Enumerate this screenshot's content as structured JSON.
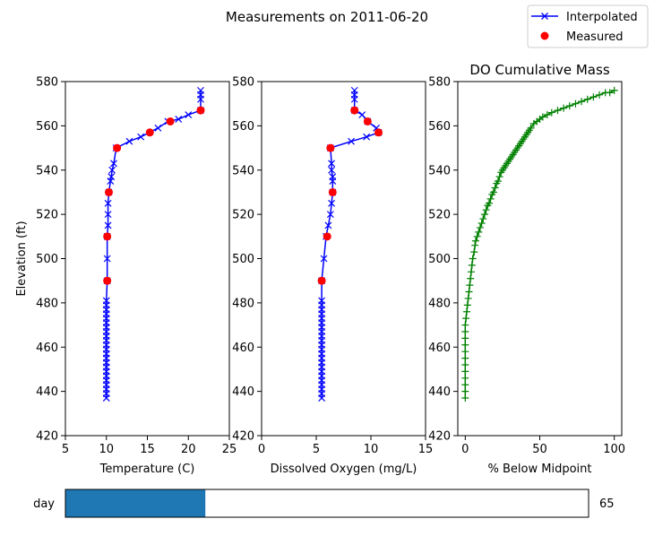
{
  "figure": {
    "title": "Measurements on 2011-06-20",
    "legend": {
      "placement": "top-right",
      "interpolated_label": "Interpolated",
      "measured_label": "Measured"
    },
    "colors": {
      "interpolated": "#0000ff",
      "measured": "#ff0000",
      "cumulative": "#008000",
      "slider_fill": "#1f77b4"
    }
  },
  "slider": {
    "label": "day",
    "value": 65,
    "value_text": "65",
    "fraction": 0.267
  },
  "chart_data": [
    {
      "type": "line",
      "xlabel": "Temperature (C)",
      "ylabel": "Elevation (ft)",
      "xlim": [
        5,
        25
      ],
      "ylim": [
        420,
        580
      ],
      "xticks": [
        "5",
        "10",
        "15",
        "20",
        "25"
      ],
      "yticks": [
        "420",
        "440",
        "460",
        "480",
        "500",
        "520",
        "540",
        "560",
        "580"
      ],
      "series": [
        {
          "name": "Interpolated",
          "marker": "x",
          "x": [
            10.0,
            10.0,
            10.0,
            10.0,
            10.0,
            10.0,
            10.0,
            10.0,
            10.0,
            10.0,
            10.0,
            10.0,
            10.0,
            10.0,
            10.0,
            10.0,
            10.0,
            10.0,
            10.0,
            10.0,
            10.0,
            10.0,
            10.0,
            10.1,
            10.1,
            10.1,
            10.2,
            10.2,
            10.2,
            10.3,
            10.5,
            10.6,
            10.7,
            10.9,
            11.2,
            12.8,
            14.2,
            16.3,
            17.5,
            18.8,
            20.0,
            21.5,
            21.5,
            21.5,
            21.5
          ],
          "y": [
            437,
            439,
            441,
            443,
            445,
            447,
            449,
            451,
            453,
            455,
            457,
            459,
            461,
            463,
            465,
            467,
            469,
            471,
            473,
            475,
            477,
            479,
            481,
            490,
            500,
            510,
            515,
            520,
            525,
            530,
            535,
            537,
            540,
            543,
            550,
            553,
            555,
            559,
            562,
            563,
            565,
            567,
            572,
            574,
            576
          ]
        },
        {
          "name": "Measured",
          "marker": "o",
          "x": [
            10.1,
            10.1,
            10.3,
            11.3,
            15.3,
            17.8,
            21.5
          ],
          "y": [
            490,
            510,
            530,
            550,
            557,
            562,
            567
          ]
        }
      ]
    },
    {
      "type": "line",
      "xlabel": "Dissolved Oxygen (mg/L)",
      "xlim": [
        0,
        15
      ],
      "ylim": [
        420,
        580
      ],
      "xticks": [
        "0",
        "5",
        "10",
        "15"
      ],
      "yticks": [
        "420",
        "440",
        "460",
        "480",
        "500",
        "520",
        "540",
        "560",
        "580"
      ],
      "series": [
        {
          "name": "Interpolated",
          "marker": "x",
          "x": [
            5.5,
            5.5,
            5.5,
            5.5,
            5.5,
            5.5,
            5.5,
            5.5,
            5.5,
            5.5,
            5.5,
            5.5,
            5.5,
            5.5,
            5.5,
            5.5,
            5.5,
            5.5,
            5.5,
            5.5,
            5.5,
            5.5,
            5.5,
            5.5,
            5.7,
            5.9,
            6.1,
            6.3,
            6.4,
            6.5,
            6.5,
            6.5,
            6.4,
            6.4,
            6.3,
            8.2,
            9.6,
            10.7,
            10.5,
            9.7,
            9.2,
            8.5,
            8.5,
            8.5,
            8.5
          ],
          "y": [
            437,
            439,
            441,
            443,
            445,
            447,
            449,
            451,
            453,
            455,
            457,
            459,
            461,
            463,
            465,
            467,
            469,
            471,
            473,
            475,
            477,
            479,
            481,
            490,
            500,
            510,
            515,
            520,
            525,
            530,
            535,
            537,
            540,
            543,
            550,
            553,
            555,
            557,
            559,
            562,
            565,
            567,
            572,
            574,
            576
          ]
        },
        {
          "name": "Measured",
          "marker": "o",
          "x": [
            5.5,
            6.0,
            6.5,
            6.3,
            10.7,
            9.7,
            8.5
          ],
          "y": [
            490,
            510,
            530,
            550,
            557,
            562,
            567
          ]
        }
      ]
    },
    {
      "type": "line",
      "title": "DO Cumulative Mass",
      "xlabel": "% Below Midpoint",
      "xlim": [
        -5,
        105
      ],
      "ylim": [
        420,
        580
      ],
      "xticks": [
        "0",
        "50",
        "100"
      ],
      "yticks": [
        "420",
        "440",
        "460",
        "480",
        "500",
        "520",
        "540",
        "560",
        "580"
      ],
      "series": [
        {
          "marker": "+",
          "x": [
            0,
            0,
            0,
            0,
            0,
            0,
            0,
            0,
            0,
            0,
            0,
            0,
            0.5,
            1,
            1.5,
            2,
            2.5,
            3,
            3.5,
            4,
            4.5,
            5,
            6,
            6.5,
            7,
            8,
            9,
            10,
            11,
            12,
            13,
            14,
            15,
            16,
            17,
            18,
            19,
            20,
            21,
            22,
            23,
            24,
            25,
            26,
            27,
            28,
            29,
            30,
            31,
            32,
            33,
            34,
            35,
            36,
            37,
            38,
            39,
            40,
            41,
            42,
            43,
            44,
            46,
            48,
            50,
            52,
            55,
            58,
            62,
            66,
            70,
            74,
            78,
            82,
            86,
            90,
            94,
            97,
            100
          ],
          "y": [
            437,
            440,
            443,
            446,
            449,
            452,
            455,
            458,
            461,
            464,
            467,
            470,
            473,
            476,
            479,
            482,
            485,
            488,
            491,
            494,
            497,
            500,
            503,
            506,
            508,
            510,
            512,
            514,
            516,
            518,
            520,
            522,
            524,
            525,
            527,
            529,
            530,
            532,
            534,
            535,
            537,
            539,
            540,
            541,
            542,
            543,
            544,
            545,
            546,
            547,
            548,
            549,
            550,
            551,
            552,
            553,
            554,
            555,
            556,
            557,
            558,
            559,
            561,
            562,
            563,
            564,
            565,
            566,
            567,
            568,
            569,
            570,
            571,
            572,
            573,
            574,
            575,
            575,
            576
          ]
        }
      ]
    }
  ]
}
